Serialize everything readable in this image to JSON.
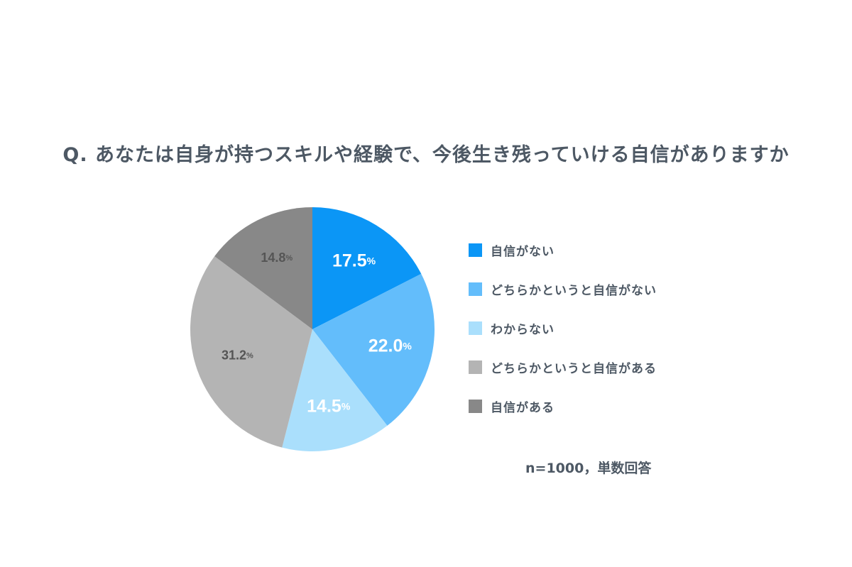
{
  "chart_data": {
    "type": "pie",
    "title": "Q. あなたは自身が持つスキルや経験で、今後生き残っていける自信がありますか",
    "categories": [
      "自信がない",
      "どちらかというと自信がない",
      "わからない",
      "どちらかというと自信がある",
      "自信がある"
    ],
    "values": [
      17.5,
      22.0,
      14.5,
      31.2,
      14.8
    ],
    "value_labels": [
      "17.5",
      "22.0",
      "14.5",
      "31.2",
      "14.8"
    ],
    "unit": "%",
    "colors": [
      "#0b96f6",
      "#63bdfb",
      "#aadffc",
      "#b4b4b4",
      "#888888"
    ],
    "label_colors": [
      "#ffffff",
      "#ffffff",
      "#ffffff",
      "#555555",
      "#555555"
    ],
    "start": "12 o'clock",
    "direction": "clockwise",
    "legend_position": "right"
  },
  "note": "n=1000，単数回答"
}
